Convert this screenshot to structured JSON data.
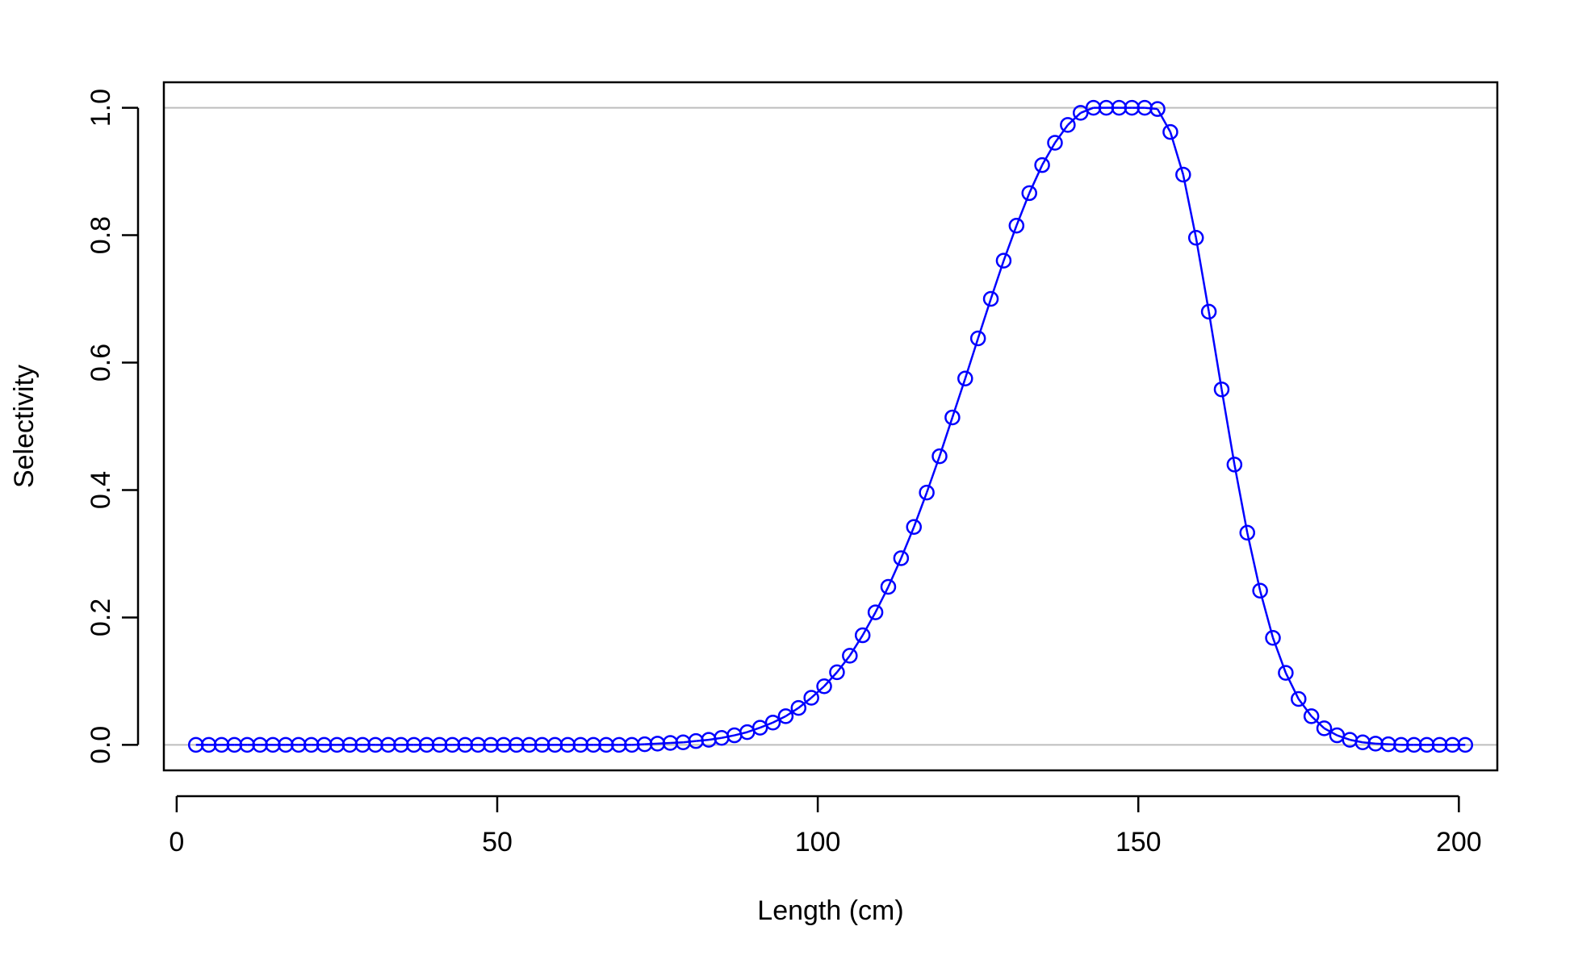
{
  "chart_data": {
    "type": "line",
    "title": "",
    "xlabel": "Length (cm)",
    "ylabel": "Selectivity",
    "xlim": [
      -2,
      206
    ],
    "ylim": [
      -0.04,
      1.04
    ],
    "x_ticks": [
      0,
      50,
      100,
      150,
      200
    ],
    "y_ticks": [
      0.0,
      0.2,
      0.4,
      0.6,
      0.8,
      1.0
    ],
    "x_tick_labels": [
      "0",
      "50",
      "100",
      "150",
      "200"
    ],
    "y_tick_labels": [
      "0.0",
      "0.2",
      "0.4",
      "0.6",
      "0.8",
      "1.0"
    ],
    "reference_lines": [
      0,
      1
    ],
    "reference_line_color": "#bebebe",
    "grid": false,
    "legend": "none",
    "series": [
      {
        "color": "#0000ff",
        "marker": "open-circle",
        "line": true,
        "x": [
          3,
          5,
          7,
          9,
          11,
          13,
          15,
          17,
          19,
          21,
          23,
          25,
          27,
          29,
          31,
          33,
          35,
          37,
          39,
          41,
          43,
          45,
          47,
          49,
          51,
          53,
          55,
          57,
          59,
          61,
          63,
          65,
          67,
          69,
          71,
          73,
          75,
          77,
          79,
          81,
          83,
          85,
          87,
          89,
          91,
          93,
          95,
          97,
          99,
          101,
          103,
          105,
          107,
          109,
          111,
          113,
          115,
          117,
          119,
          121,
          123,
          125,
          127,
          129,
          131,
          133,
          135,
          137,
          139,
          141,
          143,
          145,
          147,
          149,
          151,
          153,
          155,
          157,
          159,
          161,
          163,
          165,
          167,
          169,
          171,
          173,
          175,
          177,
          179,
          181,
          183,
          185,
          187,
          189,
          191,
          193,
          195,
          197,
          199,
          201
        ],
        "y": [
          0,
          0,
          0,
          0,
          0,
          0,
          0,
          0,
          0,
          0,
          0,
          0,
          0,
          0,
          0,
          0,
          0,
          0,
          0,
          0,
          0,
          0,
          0,
          0,
          0,
          0,
          0,
          0,
          0,
          0,
          0,
          0,
          0,
          0,
          0,
          0.001,
          0.002,
          0.003,
          0.004,
          0.006,
          0.008,
          0.011,
          0.015,
          0.02,
          0.027,
          0.035,
          0.045,
          0.058,
          0.074,
          0.092,
          0.114,
          0.14,
          0.172,
          0.208,
          0.248,
          0.293,
          0.342,
          0.396,
          0.453,
          0.514,
          0.575,
          0.638,
          0.7,
          0.76,
          0.815,
          0.866,
          0.91,
          0.945,
          0.973,
          0.992,
          1,
          1,
          1,
          1,
          1,
          0.998,
          0.962,
          0.895,
          0.796,
          0.68,
          0.558,
          0.44,
          0.333,
          0.242,
          0.168,
          0.113,
          0.072,
          0.045,
          0.026,
          0.015,
          0.008,
          0.004,
          0.002,
          0.001,
          0,
          0,
          0,
          0,
          0,
          0
        ]
      }
    ]
  }
}
